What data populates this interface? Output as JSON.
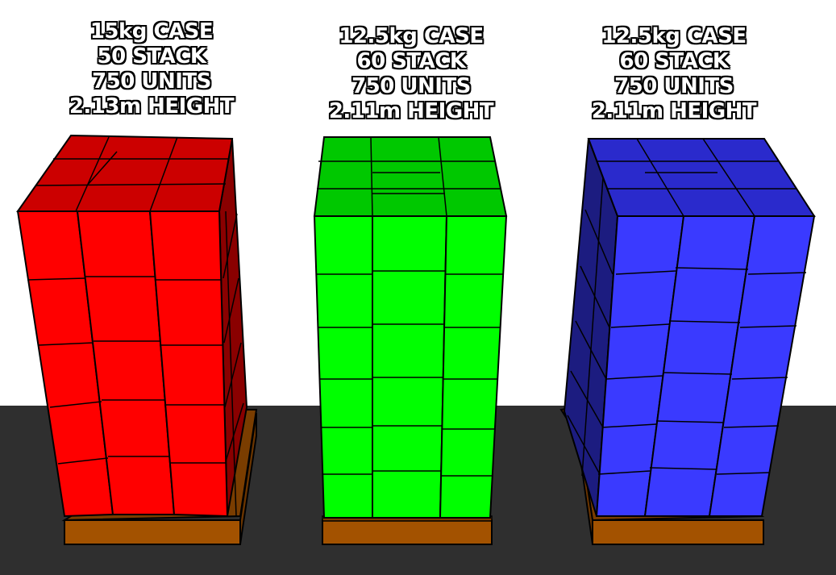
{
  "pallets": [
    {
      "case_weight": "15kg CASE",
      "stack": "50 STACK",
      "units": "750 UNITS",
      "height": "2.13m HEIGHT",
      "colors": {
        "front": "#ff0000",
        "top": "#cc0000",
        "side": "#8a0000"
      }
    },
    {
      "case_weight": "12.5kg CASE",
      "stack": "60 STACK",
      "units": "750 UNITS",
      "height": "2.11m HEIGHT",
      "colors": {
        "front": "#00ff00",
        "top": "#00c800",
        "side": "#009900"
      }
    },
    {
      "case_weight": "12.5kg CASE",
      "stack": "60 STACK",
      "units": "750 UNITS",
      "height": "2.11m HEIGHT",
      "colors": {
        "front": "#3a3aff",
        "top": "#2a2acc",
        "side": "#1c1c80"
      }
    }
  ],
  "scene_colors": {
    "floor": "#2f2f2f",
    "background": "#ffffff",
    "pallet_wood": "#a35200",
    "outline": "#000000"
  }
}
